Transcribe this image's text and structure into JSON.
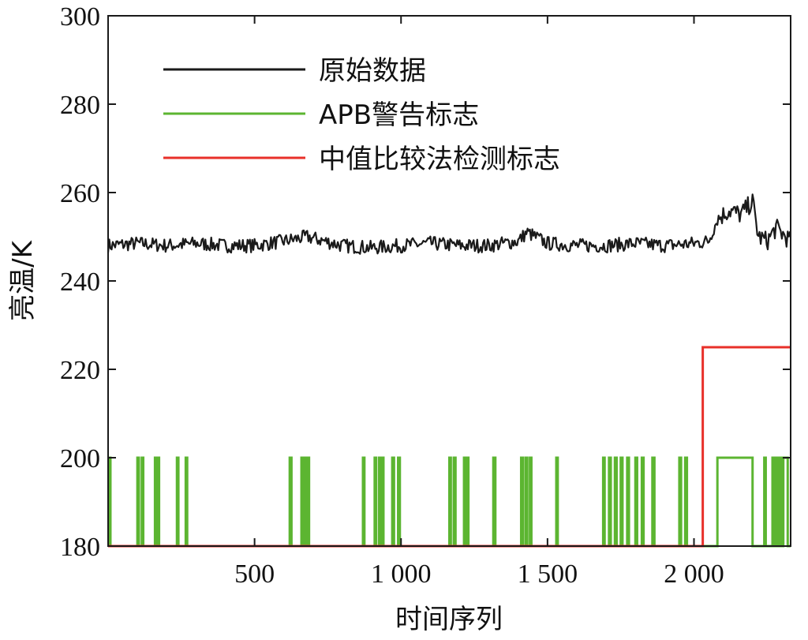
{
  "chart_data": {
    "type": "line",
    "xlabel": "时间序列",
    "ylabel": "亮温/K",
    "xlim": [
      0,
      2330
    ],
    "ylim": [
      180,
      300
    ],
    "x_ticks": [
      500,
      1000,
      1500,
      2000
    ],
    "x_tick_labels": [
      "500",
      "1 000",
      "1 500",
      "2 000"
    ],
    "y_ticks": [
      180,
      200,
      220,
      240,
      260,
      280,
      300
    ],
    "y_tick_labels": [
      "180",
      "200",
      "220",
      "240",
      "260",
      "280",
      "300"
    ],
    "grid": false,
    "legend_position": "top-left",
    "series": [
      {
        "name": "原始数据",
        "color": "#1a1a1a",
        "x": [
          0,
          100,
          200,
          300,
          400,
          500,
          600,
          680,
          800,
          900,
          1000,
          1100,
          1200,
          1300,
          1400,
          1430,
          1500,
          1600,
          1700,
          1800,
          1900,
          2000,
          2050,
          2080,
          2120,
          2160,
          2200,
          2220,
          2250,
          2280,
          2330
        ],
        "y": [
          248,
          248.5,
          248,
          248.5,
          248,
          248,
          249,
          250,
          248,
          247.5,
          248,
          248.5,
          248,
          248,
          249,
          251,
          248.5,
          248,
          248,
          248.5,
          248,
          248.5,
          249,
          254,
          256,
          255,
          258,
          250,
          249,
          252,
          249
        ]
      },
      {
        "name": "APB警告标志",
        "color": "#5cb531",
        "low": 180,
        "high": 200,
        "pulses": [
          [
            2,
            8
          ],
          [
            100,
            105
          ],
          [
            115,
            120
          ],
          [
            160,
            165
          ],
          [
            168,
            174
          ],
          [
            235,
            240
          ],
          [
            265,
            270
          ],
          [
            620,
            626
          ],
          [
            660,
            665
          ],
          [
            670,
            677
          ],
          [
            680,
            686
          ],
          [
            870,
            875
          ],
          [
            910,
            915
          ],
          [
            925,
            930
          ],
          [
            935,
            940
          ],
          [
            970,
            976
          ],
          [
            990,
            996
          ],
          [
            1165,
            1170
          ],
          [
            1180,
            1186
          ],
          [
            1215,
            1222
          ],
          [
            1225,
            1230
          ],
          [
            1315,
            1322
          ],
          [
            1410,
            1416
          ],
          [
            1425,
            1431
          ],
          [
            1440,
            1445
          ],
          [
            1530,
            1535
          ],
          [
            1690,
            1695
          ],
          [
            1710,
            1716
          ],
          [
            1730,
            1736
          ],
          [
            1750,
            1756
          ],
          [
            1772,
            1778
          ],
          [
            1800,
            1806
          ],
          [
            1822,
            1828
          ],
          [
            1858,
            1865
          ],
          [
            1950,
            1956
          ],
          [
            1970,
            1976
          ],
          [
            2080,
            2200
          ],
          [
            2240,
            2245
          ],
          [
            2268,
            2275
          ],
          [
            2280,
            2286
          ],
          [
            2292,
            2300
          ],
          [
            2305,
            2320
          ]
        ]
      },
      {
        "name": "中值比较法检测标志",
        "color": "#e8302a",
        "x": [
          0,
          2030,
          2030,
          2330
        ],
        "y": [
          180,
          180,
          225,
          225
        ]
      }
    ]
  }
}
